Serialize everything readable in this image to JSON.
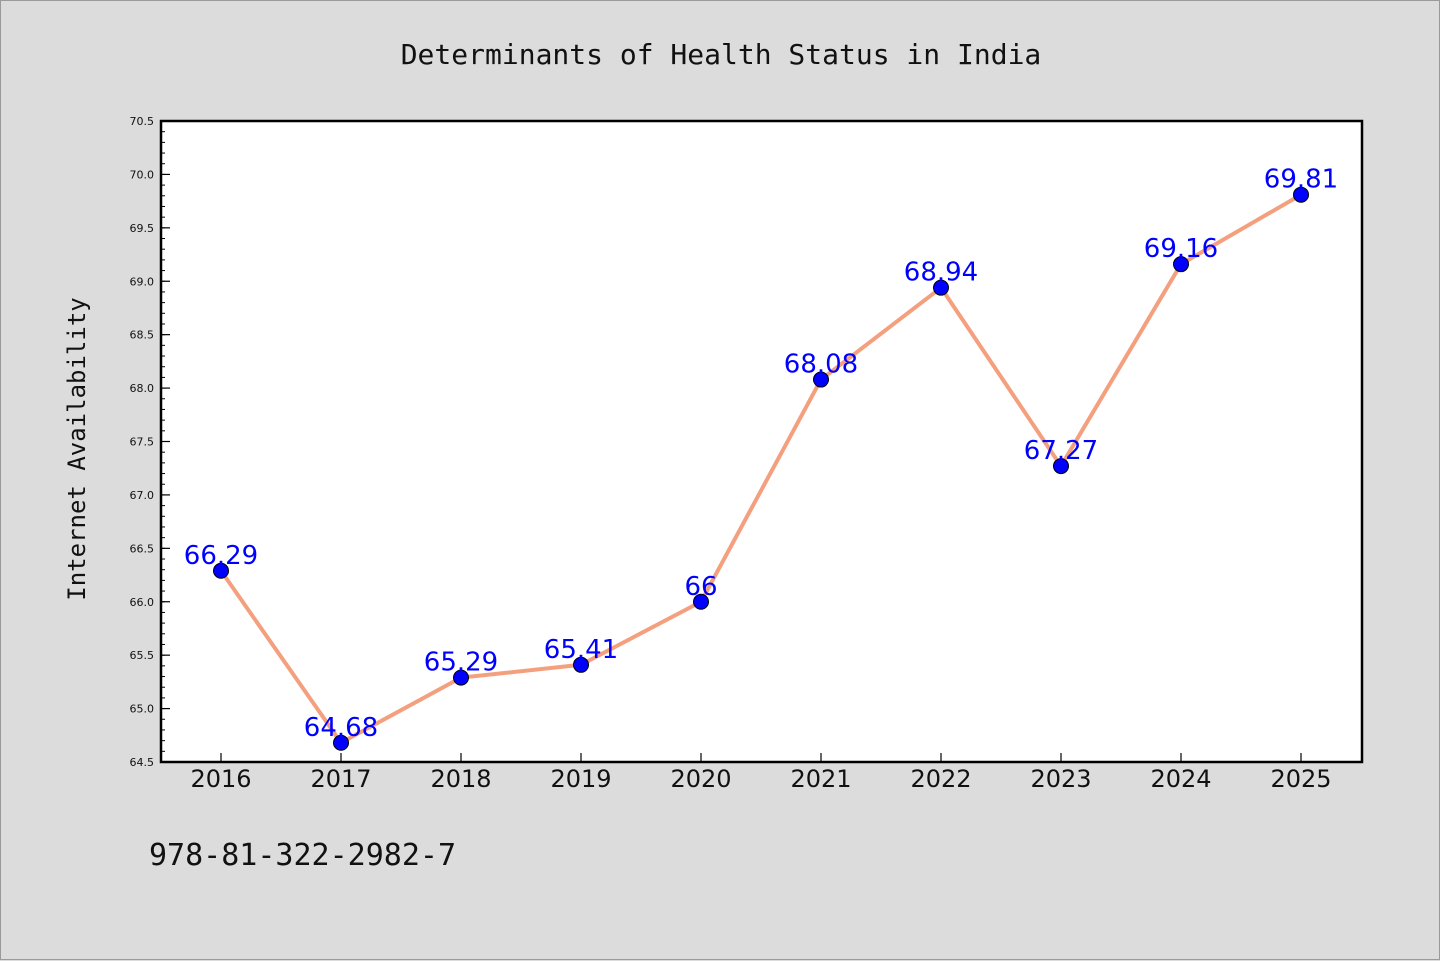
{
  "chart_data": {
    "type": "line",
    "title": "Determinants of Health Status in India",
    "ylabel": "Internet Availability",
    "xlabel": "",
    "categories": [
      "2016",
      "2017",
      "2018",
      "2019",
      "2020",
      "2021",
      "2022",
      "2023",
      "2024",
      "2025"
    ],
    "series": [
      {
        "values": [
          66.29,
          64.68,
          65.29,
          65.41,
          66,
          68.08,
          68.94,
          67.27,
          69.16,
          69.81
        ],
        "labels": [
          "66.29",
          "64.68",
          "65.29",
          "65.41",
          "66",
          "68.08",
          "68.94",
          "67.27",
          "69.16",
          "69.81"
        ]
      }
    ],
    "ylim": [
      64.5,
      70.5
    ],
    "yticks": [
      "64.5",
      "65.0",
      "65.5",
      "66.0",
      "66.5",
      "67.0",
      "67.5",
      "68.0",
      "68.5",
      "69.0",
      "69.5",
      "70.0",
      "70.5"
    ],
    "grid": false,
    "line_color": "#f4a07e",
    "marker_color": "#0000ff",
    "label_color": "#0000ff",
    "background": "#dcdcdc",
    "plot_background": "#ffffff"
  },
  "footer": {
    "isbn": "978-81-322-2982-7"
  }
}
